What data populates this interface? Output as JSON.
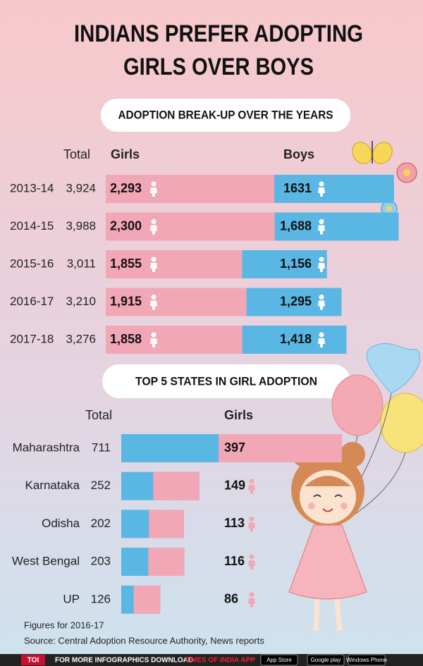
{
  "title": [
    "INDIANS PREFER ADOPTING",
    "GIRLS OVER BOYS"
  ],
  "chart_data": [
    {
      "type": "stacked-bar",
      "title": "ADOPTION BREAK-UP OVER THE YEARS",
      "categories": [
        "2013-14",
        "2014-15",
        "2015-16",
        "2016-17",
        "2017-18"
      ],
      "totals": {
        "name": "Total",
        "values": [
          3924,
          3988,
          3011,
          3210,
          3276
        ],
        "value_labels": [
          "3,924",
          "3,988",
          "3,011",
          "3,210",
          "3,276"
        ]
      },
      "series": [
        {
          "name": "Girls",
          "color": "#f2a7b7",
          "values": [
            2293,
            2300,
            1855,
            1915,
            1858
          ],
          "value_labels": [
            "2,293",
            "2,300",
            "1,855",
            "1,915",
            "1,858"
          ]
        },
        {
          "name": "Boys",
          "color": "#5ab7e3",
          "values": [
            1631,
            1688,
            1156,
            1295,
            1418
          ],
          "value_labels": [
            "1631",
            "1,688",
            "1,156",
            "1,295",
            "1,418"
          ]
        }
      ]
    },
    {
      "type": "part-bar",
      "title": "TOP 5 STATES IN GIRL ADOPTION",
      "categories": [
        "Maharashtra",
        "Karnataka",
        "Odisha",
        "West Bengal",
        "UP"
      ],
      "totals": {
        "name": "Total",
        "color": "#5ab7e3",
        "values": [
          711,
          252,
          202,
          203,
          126
        ]
      },
      "series": [
        {
          "name": "Girls",
          "color": "#f2a7b7",
          "values": [
            397,
            149,
            113,
            116,
            86
          ]
        }
      ]
    }
  ],
  "notes": [
    "Figures for 2016-17",
    "Source: Central Adoption Resource Authority, News reports"
  ],
  "footer": {
    "brand": "TOI",
    "text": "FOR MORE  INFOGRAPHICS DOWNLOAD",
    "app": "TIMES OF INDIA  APP",
    "badges": [
      "App Store",
      "Google play",
      "Windows Phone"
    ]
  }
}
